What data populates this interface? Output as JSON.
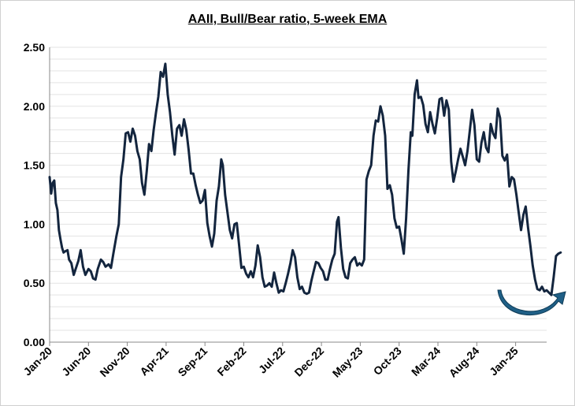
{
  "chart_data": {
    "type": "line",
    "title": "AAII, Bull/Bear ratio, 5-week EMA",
    "xlabel": "",
    "ylabel": "",
    "ylim": [
      0,
      2.5
    ],
    "y_ticks": [
      "0.00",
      "0.50",
      "1.00",
      "1.50",
      "2.00",
      "2.50"
    ],
    "x_ticks": [
      "Jan-20",
      "Jun-20",
      "Nov-20",
      "Apr-21",
      "Sep-21",
      "Feb-22",
      "Jul-22",
      "Dec-22",
      "May-23",
      "Oct-23",
      "Mar-24",
      "Aug-24",
      "Jan-25"
    ],
    "x_tick_months": [
      0,
      5,
      10,
      15,
      20,
      25,
      30,
      35,
      40,
      45,
      50,
      55,
      60
    ],
    "x_range_months": [
      0,
      64
    ],
    "grid": "horizontal",
    "line_color": "#13253e",
    "arrow_color": "#1f5f86",
    "series": [
      {
        "name": "",
        "points": [
          [
            0.0,
            1.4
          ],
          [
            0.2,
            1.26
          ],
          [
            0.4,
            1.35
          ],
          [
            0.6,
            1.37
          ],
          [
            0.8,
            1.18
          ],
          [
            1.0,
            1.12
          ],
          [
            1.2,
            0.95
          ],
          [
            1.4,
            0.87
          ],
          [
            1.6,
            0.8
          ],
          [
            1.8,
            0.76
          ],
          [
            2.0,
            0.77
          ],
          [
            2.3,
            0.78
          ],
          [
            2.5,
            0.7
          ],
          [
            2.8,
            0.67
          ],
          [
            3.1,
            0.57
          ],
          [
            3.4,
            0.63
          ],
          [
            3.7,
            0.69
          ],
          [
            4.0,
            0.78
          ],
          [
            4.3,
            0.64
          ],
          [
            4.6,
            0.57
          ],
          [
            5.0,
            0.62
          ],
          [
            5.3,
            0.6
          ],
          [
            5.6,
            0.54
          ],
          [
            5.9,
            0.53
          ],
          [
            6.2,
            0.62
          ],
          [
            6.6,
            0.7
          ],
          [
            6.9,
            0.68
          ],
          [
            7.2,
            0.64
          ],
          [
            7.6,
            0.66
          ],
          [
            7.9,
            0.63
          ],
          [
            8.2,
            0.75
          ],
          [
            8.6,
            0.9
          ],
          [
            8.9,
            1.0
          ],
          [
            9.2,
            1.4
          ],
          [
            9.5,
            1.55
          ],
          [
            9.8,
            1.77
          ],
          [
            10.1,
            1.78
          ],
          [
            10.4,
            1.7
          ],
          [
            10.7,
            1.81
          ],
          [
            11.0,
            1.75
          ],
          [
            11.3,
            1.62
          ],
          [
            11.6,
            1.55
          ],
          [
            11.9,
            1.35
          ],
          [
            12.2,
            1.25
          ],
          [
            12.5,
            1.45
          ],
          [
            12.8,
            1.68
          ],
          [
            13.1,
            1.62
          ],
          [
            13.4,
            1.8
          ],
          [
            13.7,
            1.95
          ],
          [
            14.0,
            2.08
          ],
          [
            14.3,
            2.29
          ],
          [
            14.6,
            2.25
          ],
          [
            14.9,
            2.36
          ],
          [
            15.2,
            2.1
          ],
          [
            15.5,
            1.95
          ],
          [
            15.8,
            1.75
          ],
          [
            16.1,
            1.59
          ],
          [
            16.4,
            1.81
          ],
          [
            16.7,
            1.84
          ],
          [
            17.0,
            1.75
          ],
          [
            17.3,
            1.89
          ],
          [
            17.6,
            1.8
          ],
          [
            17.9,
            1.63
          ],
          [
            18.2,
            1.43
          ],
          [
            18.5,
            1.43
          ],
          [
            18.8,
            1.33
          ],
          [
            19.1,
            1.25
          ],
          [
            19.4,
            1.18
          ],
          [
            19.7,
            1.2
          ],
          [
            20.0,
            1.29
          ],
          [
            20.3,
            1.01
          ],
          [
            20.6,
            0.9
          ],
          [
            20.9,
            0.81
          ],
          [
            21.2,
            0.92
          ],
          [
            21.5,
            1.2
          ],
          [
            21.8,
            1.32
          ],
          [
            22.1,
            1.55
          ],
          [
            22.3,
            1.5
          ],
          [
            22.6,
            1.25
          ],
          [
            22.9,
            1.1
          ],
          [
            23.2,
            0.95
          ],
          [
            23.5,
            0.88
          ],
          [
            23.8,
            1.0
          ],
          [
            24.1,
            1.01
          ],
          [
            24.4,
            0.82
          ],
          [
            24.7,
            0.63
          ],
          [
            25.0,
            0.64
          ],
          [
            25.3,
            0.58
          ],
          [
            25.6,
            0.55
          ],
          [
            25.9,
            0.6
          ],
          [
            26.2,
            0.55
          ],
          [
            26.5,
            0.65
          ],
          [
            26.8,
            0.82
          ],
          [
            27.1,
            0.72
          ],
          [
            27.4,
            0.55
          ],
          [
            27.7,
            0.47
          ],
          [
            28.0,
            0.48
          ],
          [
            28.3,
            0.5
          ],
          [
            28.6,
            0.47
          ],
          [
            28.9,
            0.59
          ],
          [
            29.2,
            0.5
          ],
          [
            29.5,
            0.42
          ],
          [
            29.8,
            0.44
          ],
          [
            30.1,
            0.43
          ],
          [
            30.4,
            0.5
          ],
          [
            30.7,
            0.58
          ],
          [
            31.0,
            0.67
          ],
          [
            31.3,
            0.78
          ],
          [
            31.6,
            0.72
          ],
          [
            31.9,
            0.55
          ],
          [
            32.2,
            0.45
          ],
          [
            32.5,
            0.47
          ],
          [
            32.8,
            0.42
          ],
          [
            33.1,
            0.41
          ],
          [
            33.4,
            0.42
          ],
          [
            33.7,
            0.52
          ],
          [
            34.0,
            0.6
          ],
          [
            34.3,
            0.68
          ],
          [
            34.6,
            0.67
          ],
          [
            34.9,
            0.63
          ],
          [
            35.2,
            0.6
          ],
          [
            35.5,
            0.53
          ],
          [
            35.8,
            0.53
          ],
          [
            36.1,
            0.62
          ],
          [
            36.4,
            0.7
          ],
          [
            36.7,
            0.75
          ],
          [
            37.0,
            1.02
          ],
          [
            37.2,
            1.06
          ],
          [
            37.5,
            0.8
          ],
          [
            37.8,
            0.62
          ],
          [
            38.1,
            0.55
          ],
          [
            38.4,
            0.54
          ],
          [
            38.7,
            0.67
          ],
          [
            39.0,
            0.7
          ],
          [
            39.3,
            0.72
          ],
          [
            39.6,
            0.65
          ],
          [
            39.9,
            0.67
          ],
          [
            40.2,
            0.65
          ],
          [
            40.5,
            0.7
          ],
          [
            40.8,
            1.38
          ],
          [
            41.1,
            1.45
          ],
          [
            41.4,
            1.5
          ],
          [
            41.7,
            1.75
          ],
          [
            42.0,
            1.88
          ],
          [
            42.3,
            1.87
          ],
          [
            42.6,
            2.0
          ],
          [
            42.9,
            1.92
          ],
          [
            43.2,
            1.75
          ],
          [
            43.5,
            1.3
          ],
          [
            43.8,
            1.33
          ],
          [
            44.1,
            1.25
          ],
          [
            44.4,
            1.05
          ],
          [
            44.7,
            0.97
          ],
          [
            45.0,
            0.98
          ],
          [
            45.3,
            0.87
          ],
          [
            45.6,
            0.75
          ],
          [
            45.9,
            1.05
          ],
          [
            46.2,
            1.45
          ],
          [
            46.5,
            1.78
          ],
          [
            46.7,
            1.75
          ],
          [
            47.0,
            2.1
          ],
          [
            47.3,
            2.22
          ],
          [
            47.5,
            2.07
          ],
          [
            47.8,
            2.08
          ],
          [
            48.1,
            2.01
          ],
          [
            48.4,
            1.85
          ],
          [
            48.7,
            1.78
          ],
          [
            49.0,
            1.95
          ],
          [
            49.3,
            1.85
          ],
          [
            49.6,
            1.77
          ],
          [
            49.9,
            1.9
          ],
          [
            50.2,
            2.06
          ],
          [
            50.5,
            2.07
          ],
          [
            50.8,
            1.92
          ],
          [
            51.1,
            2.05
          ],
          [
            51.4,
            1.97
          ],
          [
            51.7,
            1.53
          ],
          [
            52.0,
            1.36
          ],
          [
            52.3,
            1.45
          ],
          [
            52.6,
            1.55
          ],
          [
            52.9,
            1.64
          ],
          [
            53.2,
            1.57
          ],
          [
            53.5,
            1.5
          ],
          [
            53.8,
            1.62
          ],
          [
            54.1,
            1.79
          ],
          [
            54.4,
            1.97
          ],
          [
            54.7,
            1.84
          ],
          [
            55.0,
            1.55
          ],
          [
            55.3,
            1.53
          ],
          [
            55.6,
            1.69
          ],
          [
            55.9,
            1.78
          ],
          [
            56.2,
            1.65
          ],
          [
            56.5,
            1.61
          ],
          [
            56.8,
            1.85
          ],
          [
            57.1,
            1.77
          ],
          [
            57.4,
            1.73
          ],
          [
            57.7,
            1.98
          ],
          [
            58.0,
            1.9
          ],
          [
            58.3,
            1.58
          ],
          [
            58.6,
            1.54
          ],
          [
            58.9,
            1.59
          ],
          [
            59.2,
            1.32
          ],
          [
            59.5,
            1.4
          ],
          [
            59.8,
            1.38
          ],
          [
            60.1,
            1.25
          ],
          [
            60.4,
            1.1
          ],
          [
            60.7,
            0.95
          ],
          [
            61.0,
            1.08
          ],
          [
            61.3,
            1.15
          ],
          [
            61.6,
            0.97
          ],
          [
            61.9,
            0.82
          ],
          [
            62.2,
            0.65
          ],
          [
            62.5,
            0.53
          ],
          [
            62.8,
            0.45
          ],
          [
            63.1,
            0.44
          ],
          [
            63.4,
            0.47
          ],
          [
            63.7,
            0.43
          ],
          [
            64.0,
            0.44
          ],
          [
            64.3,
            0.42
          ],
          [
            64.6,
            0.4
          ],
          [
            64.9,
            0.55
          ],
          [
            65.2,
            0.73
          ],
          [
            65.5,
            0.75
          ],
          [
            65.8,
            0.76
          ]
        ]
      }
    ]
  }
}
